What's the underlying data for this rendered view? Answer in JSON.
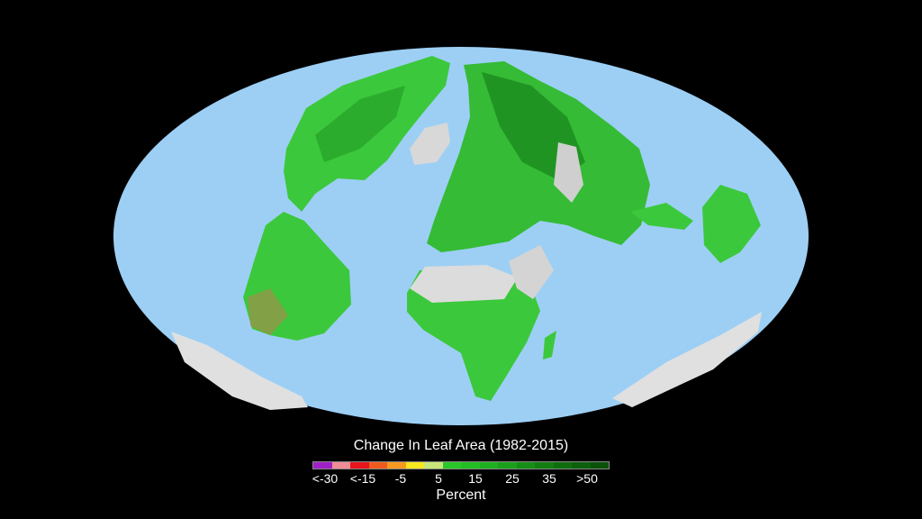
{
  "legend": {
    "title": "Change In Leaf Area (1982-2015)",
    "unit": "Percent",
    "tick_labels": [
      "<-30",
      "<-15",
      "-5",
      "5",
      "15",
      "25",
      "35",
      ">50"
    ],
    "colors": [
      "#a020c8",
      "#f08c96",
      "#e8141e",
      "#f05a1e",
      "#f59a1e",
      "#f5e61e",
      "#c8e678",
      "#28c828",
      "#22be22",
      "#1eb01e",
      "#1aa01a",
      "#168e16",
      "#127e12",
      "#0e6e0e",
      "#0c600c",
      "#0a520a"
    ]
  },
  "map": {
    "ocean_color": "#9dcff5",
    "land_gain_color": "#3cc83c",
    "barren_color": "#d8d8d8"
  }
}
